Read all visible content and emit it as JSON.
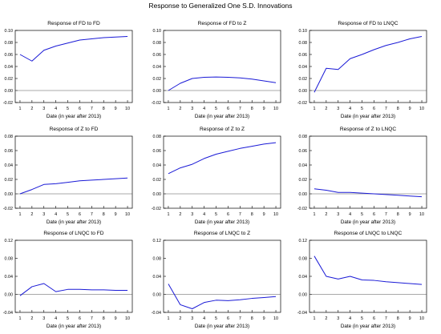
{
  "title": "Response to Generalized One S.D. Innovations",
  "colors": {
    "line": "#1a1ad6",
    "axis": "#000000",
    "zero_line": "#555555"
  },
  "chart_data": [
    {
      "type": "line",
      "title": "Response of FD to FD",
      "xlabel": "Date (in year after 2013)",
      "x": [
        1,
        2,
        3,
        4,
        5,
        6,
        7,
        8,
        9,
        10
      ],
      "ylim": [
        -0.02,
        0.1
      ],
      "yticks": [
        "-0.02",
        "0.00",
        "0.02",
        "0.04",
        "0.06",
        "0.08",
        "0.10"
      ],
      "series": [
        {
          "values": [
            0.06,
            0.049,
            0.067,
            0.074,
            0.079,
            0.084,
            0.086,
            0.088,
            0.089,
            0.09
          ]
        }
      ],
      "zero_line": 0
    },
    {
      "type": "line",
      "title": "Response of FD to Z",
      "xlabel": "Date (in year after 2013)",
      "x": [
        1,
        2,
        3,
        4,
        5,
        6,
        7,
        8,
        9,
        10
      ],
      "ylim": [
        -0.02,
        0.1
      ],
      "yticks": [
        "-0.02",
        "0.00",
        "0.02",
        "0.04",
        "0.06",
        "0.08",
        "0.10"
      ],
      "series": [
        {
          "values": [
            0.0,
            0.012,
            0.02,
            0.022,
            0.0225,
            0.022,
            0.021,
            0.019,
            0.016,
            0.013
          ]
        }
      ],
      "zero_line": 0
    },
    {
      "type": "line",
      "title": "Response of FD to LNQC",
      "xlabel": "Date (in year after 2013)",
      "x": [
        1,
        2,
        3,
        4,
        5,
        6,
        7,
        8,
        9,
        10
      ],
      "ylim": [
        -0.02,
        0.1
      ],
      "yticks": [
        "-0.02",
        "0.00",
        "0.02",
        "0.04",
        "0.06",
        "0.08",
        "0.10"
      ],
      "series": [
        {
          "values": [
            -0.003,
            0.037,
            0.035,
            0.053,
            0.06,
            0.068,
            0.075,
            0.08,
            0.086,
            0.09
          ]
        }
      ],
      "zero_line": 0
    },
    {
      "type": "line",
      "title": "Response of Z to FD",
      "xlabel": "Date (in year after 2013)",
      "x": [
        1,
        2,
        3,
        4,
        5,
        6,
        7,
        8,
        9,
        10
      ],
      "ylim": [
        -0.02,
        0.08
      ],
      "yticks": [
        "-0.02",
        "0.00",
        "0.02",
        "0.04",
        "0.06",
        "0.08"
      ],
      "series": [
        {
          "values": [
            0.0,
            0.006,
            0.013,
            0.014,
            0.016,
            0.018,
            0.019,
            0.02,
            0.021,
            0.022
          ]
        }
      ],
      "zero_line": 0
    },
    {
      "type": "line",
      "title": "Response of Z to Z",
      "xlabel": "Date (in year after 2013)",
      "x": [
        1,
        2,
        3,
        4,
        5,
        6,
        7,
        8,
        9,
        10
      ],
      "ylim": [
        -0.02,
        0.08
      ],
      "yticks": [
        "-0.02",
        "0.00",
        "0.02",
        "0.04",
        "0.06",
        "0.08"
      ],
      "series": [
        {
          "values": [
            0.028,
            0.036,
            0.041,
            0.049,
            0.055,
            0.059,
            0.063,
            0.066,
            0.069,
            0.071
          ]
        }
      ],
      "zero_line": 0
    },
    {
      "type": "line",
      "title": "Response of Z to LNQC",
      "xlabel": "Date (in year after 2013)",
      "x": [
        1,
        2,
        3,
        4,
        5,
        6,
        7,
        8,
        9,
        10
      ],
      "ylim": [
        -0.02,
        0.08
      ],
      "yticks": [
        "-0.02",
        "0.00",
        "0.02",
        "0.04",
        "0.06",
        "0.08"
      ],
      "series": [
        {
          "values": [
            0.007,
            0.005,
            0.002,
            0.002,
            0.001,
            0.0,
            -0.001,
            -0.002,
            -0.003,
            -0.004
          ]
        }
      ],
      "zero_line": 0
    },
    {
      "type": "line",
      "title": "Response of LNQC to FD",
      "xlabel": "Date (in year after 2013)",
      "x": [
        1,
        2,
        3,
        4,
        5,
        6,
        7,
        8,
        9,
        10
      ],
      "ylim": [
        -0.04,
        0.12
      ],
      "yticks": [
        "-0.04",
        "0.00",
        "0.04",
        "0.08",
        "0.12"
      ],
      "series": [
        {
          "values": [
            -0.003,
            0.017,
            0.024,
            0.006,
            0.011,
            0.011,
            0.01,
            0.01,
            0.009,
            0.009
          ]
        }
      ],
      "zero_line": 0
    },
    {
      "type": "line",
      "title": "Response of LNQC to Z",
      "xlabel": "Date (in year after 2013)",
      "x": [
        1,
        2,
        3,
        4,
        5,
        6,
        7,
        8,
        9,
        10
      ],
      "ylim": [
        -0.04,
        0.12
      ],
      "yticks": [
        "-0.04",
        "0.00",
        "0.04",
        "0.08",
        "0.12"
      ],
      "series": [
        {
          "values": [
            0.023,
            -0.023,
            -0.032,
            -0.018,
            -0.013,
            -0.014,
            -0.012,
            -0.009,
            -0.007,
            -0.005
          ]
        }
      ],
      "zero_line": 0
    },
    {
      "type": "line",
      "title": "Response of LNQC to LNQC",
      "xlabel": "Date (in year after 2013)",
      "x": [
        1,
        2,
        3,
        4,
        5,
        6,
        7,
        8,
        9,
        10
      ],
      "ylim": [
        -0.04,
        0.12
      ],
      "yticks": [
        "-0.04",
        "0.00",
        "0.04",
        "0.08",
        "0.12"
      ],
      "series": [
        {
          "values": [
            0.085,
            0.04,
            0.034,
            0.04,
            0.032,
            0.031,
            0.028,
            0.026,
            0.024,
            0.022
          ]
        }
      ],
      "zero_line": 0
    }
  ]
}
